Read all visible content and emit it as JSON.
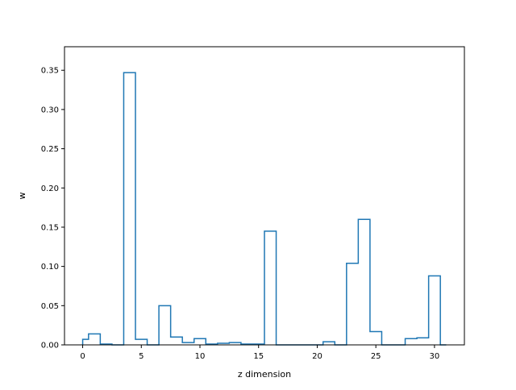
{
  "chart_data": {
    "type": "step",
    "title": "",
    "xlabel": "z dimension",
    "ylabel": "w",
    "xlim": [
      -1.55,
      32.55
    ],
    "ylim": [
      0,
      0.38
    ],
    "xticks": [
      0,
      5,
      10,
      15,
      20,
      25,
      30
    ],
    "yticks": [
      0.0,
      0.05,
      0.1,
      0.15,
      0.2,
      0.25,
      0.3,
      0.35
    ],
    "ytick_labels": [
      "0.00",
      "0.05",
      "0.10",
      "0.15",
      "0.20",
      "0.25",
      "0.30",
      "0.35"
    ],
    "grid": false,
    "legend": false,
    "series": [
      {
        "bin_edges": [
          0,
          0.5,
          1.5,
          2.5,
          3.5,
          4.5,
          5.5,
          6.5,
          7.5,
          8.5,
          9.5,
          10.5,
          11.5,
          12.5,
          13.5,
          14.5,
          15.5,
          16.5,
          17.5,
          18.5,
          19.5,
          20.5,
          21.5,
          22.5,
          23.5,
          24.5,
          25.5,
          26.5,
          27.5,
          28.5,
          29.5,
          30.5,
          31
        ],
        "values": [
          0.007,
          0.014,
          0.001,
          0.0,
          0.347,
          0.007,
          0.0,
          0.05,
          0.01,
          0.003,
          0.008,
          0.001,
          0.002,
          0.003,
          0.001,
          0.001,
          0.145,
          0.0,
          0.0,
          0.0,
          0.0,
          0.004,
          0.0,
          0.104,
          0.16,
          0.017,
          0.0,
          0.0,
          0.008,
          0.009,
          0.088,
          0.0
        ],
        "color": "#1f77b4"
      }
    ]
  }
}
